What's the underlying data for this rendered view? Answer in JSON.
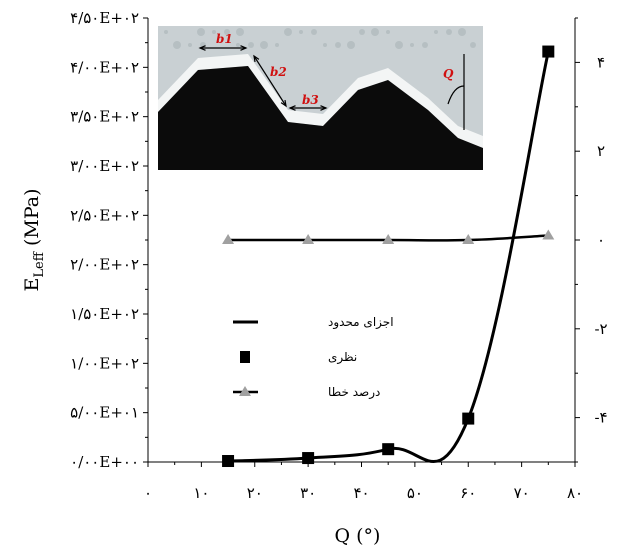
{
  "chart_data": {
    "type": "line",
    "xlabel": "Q (°)",
    "ylabel": "E",
    "ylabel_sub": "Leff",
    "ylabel_unit": " (MPa)",
    "xlim": [
      0,
      80
    ],
    "ylim_left": [
      0,
      450
    ],
    "ylim_right": [
      -5,
      5
    ],
    "x_ticks": [
      0,
      10,
      20,
      30,
      40,
      50,
      60,
      70,
      80
    ],
    "x_tick_labels": [
      "۰",
      "۱۰",
      "۲۰",
      "۳۰",
      "۴۰",
      "۵۰",
      "۶۰",
      "۷۰",
      "۸۰"
    ],
    "y_left_ticks": [
      0,
      50,
      100,
      150,
      200,
      250,
      300,
      350,
      400,
      450
    ],
    "y_left_tick_labels": [
      "۰/۰۰E+۰۰",
      "۵/۰۰E+۰۱",
      "۱/۰۰E+۰۲",
      "۱/۵۰E+۰۲",
      "۲/۰۰E+۰۲",
      "۲/۵۰E+۰۲",
      "۳/۰۰E+۰۲",
      "۳/۵۰E+۰۲",
      "۴/۰۰E+۰۲",
      "۴/۵۰E+۰۲"
    ],
    "y_right_ticks": [
      4,
      2,
      0,
      -2,
      -4
    ],
    "y_right_tick_labels": [
      "۴",
      "۲",
      "۰",
      "-۲",
      "-۴"
    ],
    "series": [
      {
        "name": "اجزای محدود",
        "axis": "left",
        "marker": "none",
        "x": [
          15,
          30,
          45,
          60,
          75
        ],
        "y": [
          1,
          4,
          13,
          44,
          416
        ]
      },
      {
        "name": "نظری",
        "axis": "left",
        "marker": "square",
        "x": [
          15,
          30,
          45,
          60,
          75
        ],
        "y": [
          1,
          4,
          13,
          44,
          416
        ]
      },
      {
        "name": "درصد خطا",
        "axis": "right",
        "marker": "triangle",
        "x": [
          15,
          30,
          45,
          60,
          75
        ],
        "y": [
          0.0,
          0.0,
          0.0,
          0.0,
          0.1
        ]
      }
    ],
    "legend_position": "center-left",
    "inset": {
      "labels": [
        "b1",
        "b2",
        "b3",
        "Q"
      ]
    }
  }
}
